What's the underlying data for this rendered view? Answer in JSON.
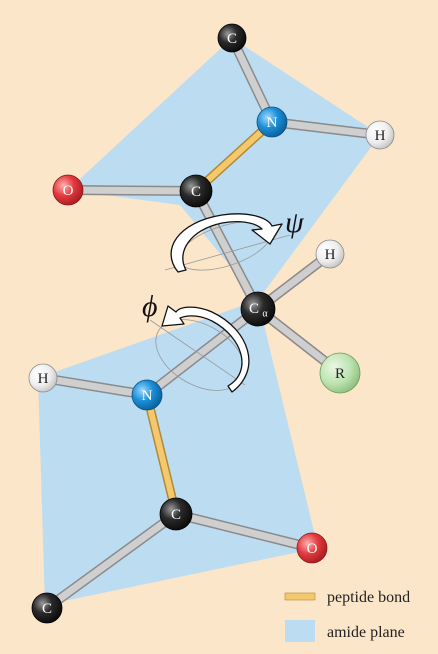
{
  "atoms": {
    "c_top": {
      "label": "C",
      "color": "#1a1a1a"
    },
    "n_top": {
      "label": "N",
      "color": "#1c8fd6"
    },
    "h_top": {
      "label": "H",
      "color": "#ededed"
    },
    "o_top": {
      "label": "O",
      "color": "#e33a3f"
    },
    "c_carbonyl_top": {
      "label": "C",
      "color": "#1a1a1a"
    },
    "h_alpha": {
      "label": "H",
      "color": "#ededed"
    },
    "c_alpha": {
      "label": "C",
      "subscript": "α",
      "color": "#1a1a1a"
    },
    "r_group": {
      "label": "R",
      "color": "#b9e0ad"
    },
    "h_bottom": {
      "label": "H",
      "color": "#ededed"
    },
    "n_bottom": {
      "label": "N",
      "color": "#1c8fd6"
    },
    "c_carbonyl_bottom": {
      "label": "C",
      "color": "#1a1a1a"
    },
    "o_bottom": {
      "label": "O",
      "color": "#e33a3f"
    },
    "c_bottom": {
      "label": "C",
      "color": "#1a1a1a"
    }
  },
  "angles": {
    "psi": "ψ",
    "phi": "ϕ"
  },
  "legend": {
    "peptide_bond": {
      "label": "peptide bond",
      "color": "#f6c86e"
    },
    "amide_plane": {
      "label": "amide plane",
      "color": "#bcdcf2"
    }
  },
  "colors": {
    "background": "#fbe6c9",
    "bond": "#c8c8c8"
  }
}
